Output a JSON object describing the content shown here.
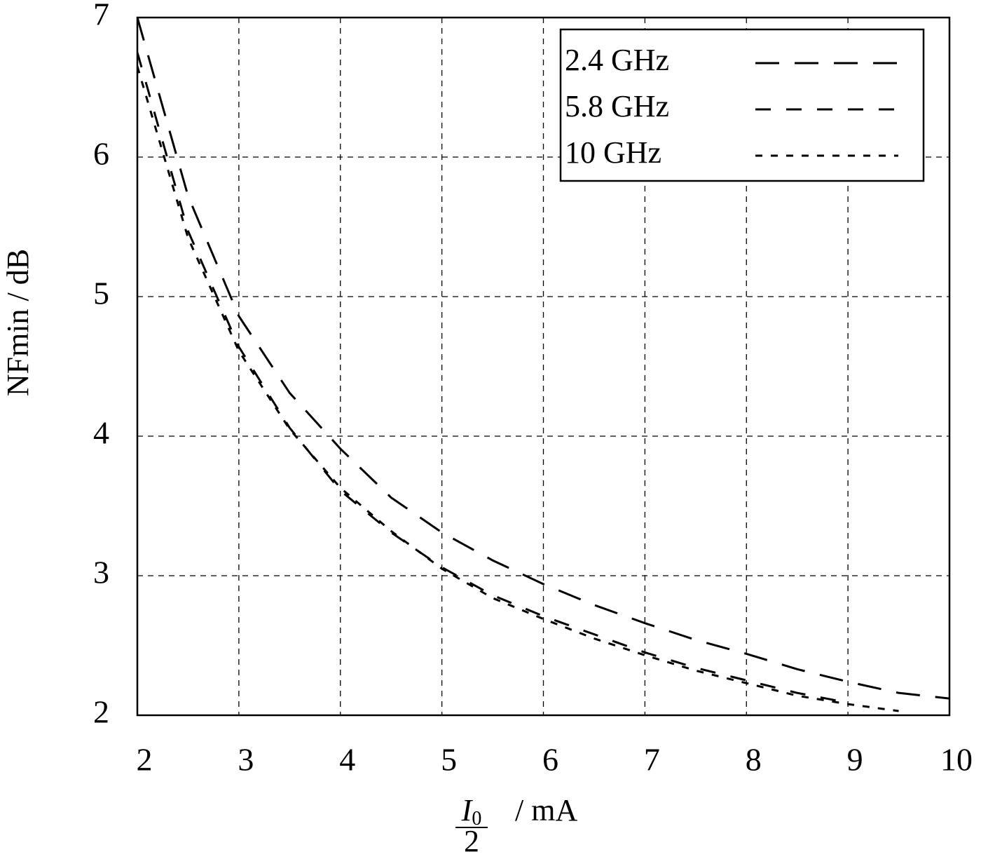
{
  "chart_data": {
    "type": "line",
    "x_label": {
      "numerator_symbol": "I",
      "numerator_subscript": "0",
      "denominator": "2",
      "unit": "/  mA"
    },
    "y_label": "NFmin  /  dB",
    "x": [
      2,
      2.5,
      3,
      3.5,
      4,
      4.5,
      5,
      5.5,
      6,
      6.5,
      7,
      7.5,
      8,
      8.5,
      9,
      9.5,
      10
    ],
    "series": [
      {
        "name": "2.4 GHz",
        "color": "#000000",
        "dash": "34,22",
        "values": [
          7.0,
          5.72,
          4.86,
          4.31,
          3.91,
          3.56,
          3.31,
          3.11,
          2.94,
          2.79,
          2.66,
          2.54,
          2.44,
          2.33,
          2.24,
          2.16,
          2.12
        ]
      },
      {
        "name": "5.8 GHz",
        "color": "#000000",
        "dash": "22,22",
        "values": [
          6.75,
          5.47,
          4.64,
          4.06,
          3.61,
          3.31,
          3.06,
          2.86,
          2.71,
          2.58,
          2.45,
          2.34,
          2.25,
          2.16,
          2.09,
          null,
          null
        ]
      },
      {
        "name": "10 GHz",
        "color": "#000000",
        "dash": "10,12",
        "values": [
          6.65,
          5.42,
          4.61,
          4.05,
          3.63,
          3.32,
          3.05,
          2.84,
          2.69,
          2.55,
          2.43,
          2.32,
          2.23,
          2.14,
          2.08,
          2.03,
          null
        ]
      }
    ],
    "xlim": [
      2,
      10
    ],
    "xticks": [
      2,
      3,
      4,
      5,
      6,
      7,
      8,
      9,
      10
    ],
    "ylim": [
      2,
      7
    ],
    "yticks": [
      2,
      3,
      4,
      5,
      6,
      7
    ],
    "grid": true,
    "legend": "top-right"
  }
}
